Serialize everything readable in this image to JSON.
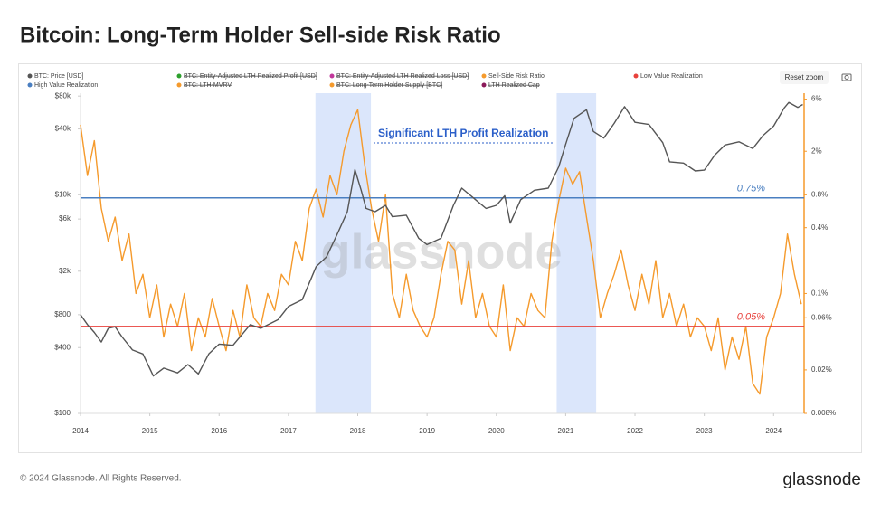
{
  "header": {
    "title": "Bitcoin: Long-Term Holder Sell-side Risk Ratio"
  },
  "toolbar": {
    "reset_zoom": "Reset zoom"
  },
  "footer": {
    "copyright": "© 2024 Glassnode. All Rights Reserved.",
    "logo": "glassnode"
  },
  "chart_data": {
    "type": "line",
    "watermark": "glassnode",
    "annotation": "Significant LTH Profit Realization",
    "bands": [
      [
        2017.39,
        2018.19
      ],
      [
        2020.87,
        2021.44
      ]
    ],
    "band_color": "#dbe6fb",
    "xlim": [
      2014,
      2024.44
    ],
    "xticks": [
      2014,
      2015,
      2016,
      2017,
      2018,
      2019,
      2020,
      2021,
      2022,
      2023,
      2024
    ],
    "ylim": [
      100,
      85000
    ],
    "ylog": true,
    "yticks": [
      {
        "value": 100,
        "label": "$100"
      },
      {
        "value": 400,
        "label": "$400"
      },
      {
        "value": 800,
        "label": "$800"
      },
      {
        "value": 2000,
        "label": "$2k"
      },
      {
        "value": 6000,
        "label": "$6k"
      },
      {
        "value": 10000,
        "label": "$10k"
      },
      {
        "value": 40000,
        "label": "$40k"
      },
      {
        "value": 80000,
        "label": "$80k"
      }
    ],
    "y2lim": [
      0.008,
      6.8
    ],
    "y2log": true,
    "y2ticks": [
      {
        "value": 0.008,
        "label": "0.008%"
      },
      {
        "value": 0.02,
        "label": "0.02%"
      },
      {
        "value": 0.06,
        "label": "0.06%"
      },
      {
        "value": 0.1,
        "label": "0.1%"
      },
      {
        "value": 0.4,
        "label": "0.4%"
      },
      {
        "value": 0.8,
        "label": "0.8%"
      },
      {
        "value": 2,
        "label": "2%"
      },
      {
        "value": 6,
        "label": "6%"
      }
    ],
    "y2_axis_color": "#f59a2c",
    "grid": false,
    "series": [
      {
        "name": "BTC: Price [USD]",
        "color": "#555555",
        "x": [
          2014.0,
          2014.1,
          2014.2,
          2014.3,
          2014.4,
          2014.5,
          2014.6,
          2014.75,
          2014.9,
          2015.05,
          2015.2,
          2015.4,
          2015.55,
          2015.7,
          2015.85,
          2016.0,
          2016.2,
          2016.45,
          2016.6,
          2016.85,
          2017.0,
          2017.2,
          2017.4,
          2017.55,
          2017.7,
          2017.85,
          2017.96,
          2018.05,
          2018.12,
          2018.25,
          2018.4,
          2018.5,
          2018.7,
          2018.88,
          2019.0,
          2019.2,
          2019.38,
          2019.5,
          2019.7,
          2019.85,
          2020.0,
          2020.12,
          2020.2,
          2020.35,
          2020.55,
          2020.75,
          2020.9,
          2021.0,
          2021.12,
          2021.3,
          2021.4,
          2021.55,
          2021.7,
          2021.85,
          2022.0,
          2022.2,
          2022.4,
          2022.5,
          2022.7,
          2022.87,
          2023.0,
          2023.15,
          2023.3,
          2023.5,
          2023.7,
          2023.85,
          2024.0,
          2024.15,
          2024.22,
          2024.35,
          2024.42
        ],
        "values": [
          800,
          650,
          550,
          450,
          600,
          620,
          500,
          380,
          350,
          220,
          260,
          235,
          280,
          230,
          350,
          430,
          420,
          650,
          600,
          720,
          950,
          1100,
          2200,
          2700,
          4300,
          7000,
          17000,
          11000,
          7500,
          7000,
          8000,
          6300,
          6500,
          4000,
          3500,
          4000,
          8000,
          11500,
          9000,
          7500,
          8000,
          9800,
          5500,
          9000,
          11000,
          11500,
          18000,
          29000,
          50000,
          60000,
          38000,
          33000,
          45000,
          64000,
          46000,
          44000,
          30000,
          20000,
          19500,
          16500,
          16800,
          23000,
          28500,
          30500,
          26500,
          35000,
          42500,
          62000,
          70000,
          63000,
          67000
        ]
      },
      {
        "name": "BTC: Entity-Adjusted LTH Realized Profit [USD]",
        "color": "#2ca02c",
        "visible": false
      },
      {
        "name": "BTC: Entity-Adjusted LTH Realized Loss [USD]",
        "color": "#c2379b",
        "visible": false
      },
      {
        "name": "Sell-Side Risk Ratio",
        "color": "#f59a2c",
        "axis": "y2",
        "x": [
          2014.0,
          2014.1,
          2014.2,
          2014.3,
          2014.4,
          2014.5,
          2014.6,
          2014.7,
          2014.8,
          2014.9,
          2015.0,
          2015.1,
          2015.2,
          2015.3,
          2015.4,
          2015.5,
          2015.6,
          2015.7,
          2015.8,
          2015.9,
          2016.0,
          2016.1,
          2016.2,
          2016.3,
          2016.4,
          2016.5,
          2016.6,
          2016.7,
          2016.8,
          2016.9,
          2017.0,
          2017.1,
          2017.2,
          2017.3,
          2017.4,
          2017.5,
          2017.6,
          2017.7,
          2017.8,
          2017.9,
          2018.0,
          2018.1,
          2018.2,
          2018.3,
          2018.4,
          2018.5,
          2018.6,
          2018.7,
          2018.8,
          2018.9,
          2019.0,
          2019.1,
          2019.2,
          2019.3,
          2019.4,
          2019.5,
          2019.6,
          2019.7,
          2019.8,
          2019.9,
          2020.0,
          2020.1,
          2020.2,
          2020.3,
          2020.4,
          2020.5,
          2020.6,
          2020.7,
          2020.8,
          2020.9,
          2021.0,
          2021.1,
          2021.2,
          2021.3,
          2021.4,
          2021.5,
          2021.6,
          2021.7,
          2021.8,
          2021.9,
          2022.0,
          2022.1,
          2022.2,
          2022.3,
          2022.4,
          2022.5,
          2022.6,
          2022.7,
          2022.8,
          2022.9,
          2023.0,
          2023.1,
          2023.2,
          2023.3,
          2023.4,
          2023.5,
          2023.6,
          2023.7,
          2023.8,
          2023.9,
          2024.0,
          2024.1,
          2024.2,
          2024.3,
          2024.4
        ],
        "values": [
          3.5,
          1.2,
          2.5,
          0.6,
          0.3,
          0.5,
          0.2,
          0.35,
          0.1,
          0.15,
          0.06,
          0.12,
          0.04,
          0.08,
          0.05,
          0.1,
          0.03,
          0.06,
          0.04,
          0.09,
          0.05,
          0.03,
          0.07,
          0.04,
          0.12,
          0.06,
          0.05,
          0.1,
          0.07,
          0.15,
          0.12,
          0.3,
          0.2,
          0.6,
          0.9,
          0.5,
          1.2,
          0.8,
          2.0,
          3.5,
          4.8,
          1.5,
          0.6,
          0.3,
          0.8,
          0.1,
          0.06,
          0.15,
          0.07,
          0.05,
          0.04,
          0.06,
          0.15,
          0.3,
          0.25,
          0.08,
          0.2,
          0.06,
          0.1,
          0.05,
          0.04,
          0.12,
          0.03,
          0.06,
          0.05,
          0.1,
          0.07,
          0.06,
          0.3,
          0.7,
          1.4,
          1.0,
          1.3,
          0.5,
          0.2,
          0.06,
          0.1,
          0.15,
          0.25,
          0.12,
          0.07,
          0.15,
          0.08,
          0.2,
          0.06,
          0.1,
          0.05,
          0.08,
          0.04,
          0.06,
          0.05,
          0.03,
          0.06,
          0.02,
          0.04,
          0.025,
          0.05,
          0.015,
          0.012,
          0.04,
          0.06,
          0.1,
          0.35,
          0.15,
          0.08
        ]
      },
      {
        "name": "Low Value Realization",
        "color": "#e8413c",
        "axis": "y2",
        "hline": true,
        "value": 0.05,
        "value_label": "0.05%"
      },
      {
        "name": "High Value Realization",
        "color": "#4a7fc1",
        "axis": "y2",
        "hline": true,
        "value": 0.75,
        "value_label": "0.75%"
      },
      {
        "name": "BTC: LTH-MVRV",
        "color": "#f59a2c",
        "visible": false
      },
      {
        "name": "BTC: Long-Term Holder Supply [BTC]",
        "color": "#f59a2c",
        "visible": false
      },
      {
        "name": "LTH Realized Cap",
        "color": "#8b1a5a",
        "visible": false
      }
    ]
  }
}
